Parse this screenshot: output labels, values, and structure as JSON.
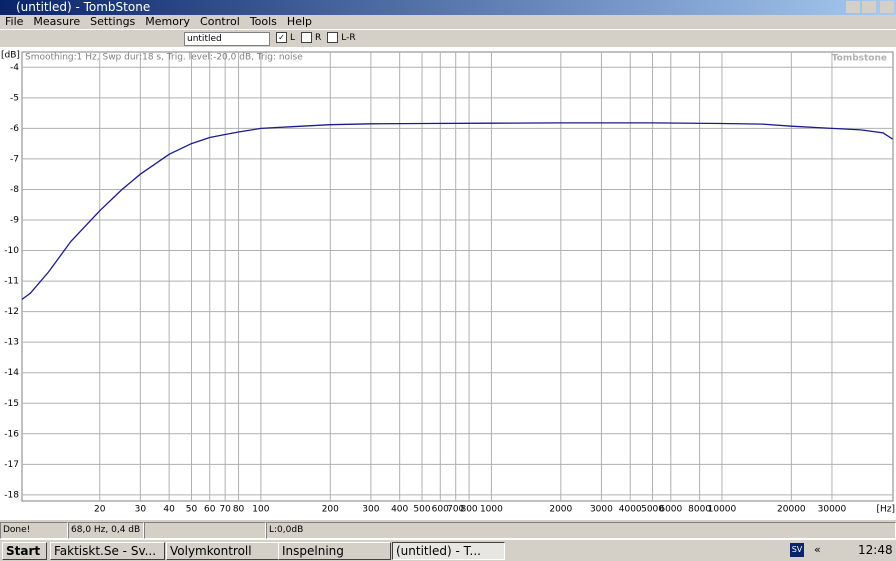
{
  "window": {
    "title": "(untitled) - TombStone",
    "menu": [
      "File",
      "Measure",
      "Settings",
      "Memory",
      "Control",
      "Tools",
      "Help"
    ],
    "toolbar": {
      "field": "untitled",
      "checks": [
        {
          "label": "L",
          "checked": true
        },
        {
          "label": "R",
          "checked": false
        },
        {
          "label": "L-R",
          "checked": false
        }
      ]
    },
    "status": [
      "Done!",
      "68,0 Hz, 0,4 dB",
      "L:0,0dB"
    ],
    "taskbar": {
      "start": "Start",
      "tasks": [
        "Faktiskt.Se - Sv...",
        "Volymkontroll",
        "Inspelning",
        "(untitled) - T..."
      ],
      "lang": "SV",
      "chevron": "«",
      "clock": "12:48"
    }
  },
  "chart_data": {
    "type": "line",
    "annotation": "Smoothing:1 Hz, Swp dur:18 s, Trig. level:-20,0 dB, Trig: noise",
    "watermark": "Tombstone",
    "xlabel": "[Hz]",
    "ylabel": "[dB]",
    "xscale": "log",
    "grid": true,
    "color": "#1a1a8c",
    "x": [
      9.2,
      10,
      12,
      15,
      20,
      25,
      30,
      40,
      50,
      60,
      70,
      80,
      100,
      150,
      200,
      300,
      500,
      1000,
      2000,
      5000,
      10000,
      15000,
      20000,
      30000,
      40000,
      50000,
      55000
    ],
    "values": [
      -11.6,
      -11.4,
      -10.7,
      -9.7,
      -8.7,
      -8.0,
      -7.5,
      -6.85,
      -6.5,
      -6.3,
      -6.2,
      -6.12,
      -6.0,
      -5.93,
      -5.88,
      -5.85,
      -5.84,
      -5.83,
      -5.82,
      -5.82,
      -5.84,
      -5.86,
      -5.93,
      -6.0,
      -6.05,
      -6.15,
      -6.35
    ],
    "xlim": [
      9.2,
      55200
    ],
    "ylim": [
      -18.2,
      -3.5
    ],
    "xticks": [
      20,
      30,
      40,
      50,
      60,
      70,
      80,
      100,
      200,
      300,
      400,
      500,
      600,
      700,
      800,
      1000,
      2000,
      3000,
      4000,
      5000,
      6000,
      8000,
      10000,
      20000,
      30000
    ],
    "yticks": [
      -4,
      -5,
      -6,
      -7,
      -8,
      -9,
      -10,
      -11,
      -12,
      -13,
      -14,
      -15,
      -16,
      -17,
      -18
    ]
  }
}
